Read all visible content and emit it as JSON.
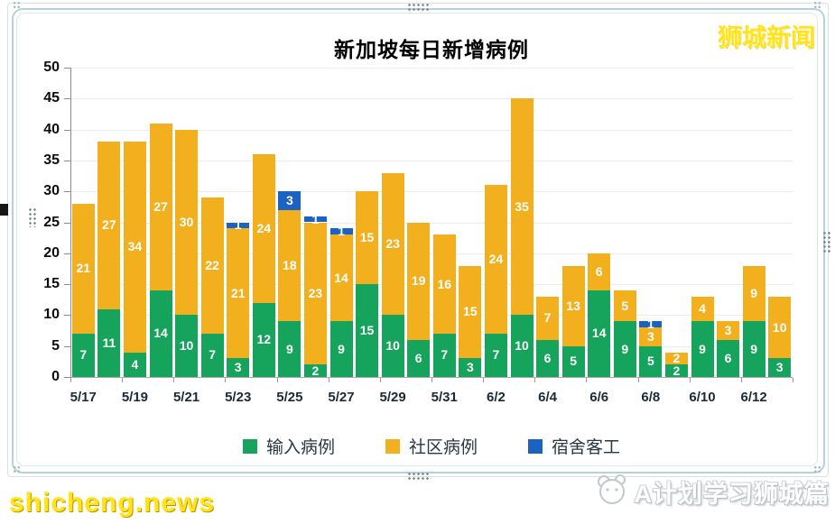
{
  "watermarks": {
    "top_right": "狮城新闻",
    "bottom_left": "shicheng.news",
    "bottom_right": "A计划学习狮城篇"
  },
  "chart_data": {
    "type": "bar",
    "stacked": true,
    "title": "新加坡每日新增病例",
    "xlabel": "",
    "ylabel": "",
    "ylim": [
      0,
      50
    ],
    "y_ticks": [
      0,
      5,
      10,
      15,
      20,
      25,
      30,
      35,
      40,
      45,
      50
    ],
    "grid": true,
    "legend_position": "bottom",
    "categories": [
      "5/17",
      "5/18",
      "5/19",
      "5/20",
      "5/21",
      "5/22",
      "5/23",
      "5/24",
      "5/25",
      "5/26",
      "5/27",
      "5/28",
      "5/29",
      "5/30",
      "5/31",
      "6/1",
      "6/2",
      "6/3",
      "6/4",
      "6/5",
      "6/6",
      "6/7",
      "6/8",
      "6/9",
      "6/10",
      "6/11",
      "6/12",
      "6/13"
    ],
    "x_tick_labels": [
      "5/17",
      "5/19",
      "5/21",
      "5/23",
      "5/25",
      "5/27",
      "5/29",
      "5/31",
      "6/2",
      "6/4",
      "6/6",
      "6/8",
      "6/10",
      "6/12"
    ],
    "x_tick_step": 2,
    "series": [
      {
        "name": "输入病例",
        "color": "#16a45c",
        "values": [
          7,
          11,
          4,
          14,
          10,
          7,
          3,
          12,
          9,
          2,
          9,
          15,
          10,
          6,
          7,
          3,
          7,
          10,
          6,
          5,
          14,
          9,
          5,
          2,
          9,
          6,
          9,
          3
        ]
      },
      {
        "name": "社区病例",
        "color": "#f2b01e",
        "values": [
          21,
          27,
          34,
          27,
          30,
          22,
          21,
          24,
          18,
          23,
          14,
          15,
          23,
          19,
          16,
          15,
          24,
          35,
          7,
          13,
          6,
          5,
          3,
          2,
          4,
          3,
          9,
          10
        ]
      },
      {
        "name": "宿舍客工",
        "color": "#1b62c3",
        "values": [
          0,
          0,
          0,
          0,
          0,
          0,
          1,
          0,
          3,
          1,
          1,
          0,
          0,
          0,
          0,
          0,
          0,
          0,
          0,
          0,
          0,
          0,
          1,
          0,
          0,
          0,
          0,
          0
        ]
      }
    ]
  }
}
